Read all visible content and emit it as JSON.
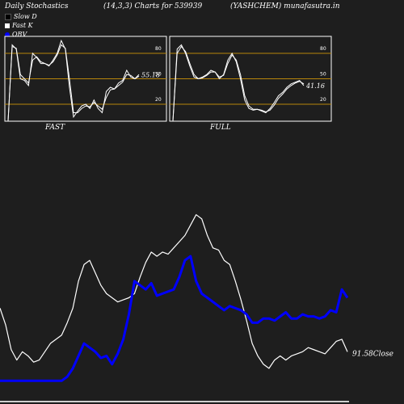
{
  "header": {
    "left": "Daily Stochastics",
    "center": "(14,3,3) Charts for 539939",
    "right": "(YASHCHEM) munafasutra.in"
  },
  "legend": [
    {
      "label": "Slow  D",
      "color": "#000000"
    },
    {
      "label": "Fast K",
      "color": "#ffffff"
    },
    {
      "label": "OBV",
      "color": "#0000ff"
    }
  ],
  "chart_data": [
    {
      "type": "line",
      "name_label": "FAST",
      "ylim": [
        0,
        100
      ],
      "yticks": [
        20,
        50,
        80
      ],
      "hlines": [
        20,
        50,
        80
      ],
      "value_label": "55.18",
      "series": [
        {
          "color": "#ffffff",
          "values": [
            0,
            90,
            85,
            50,
            48,
            42,
            80,
            75,
            68,
            68,
            65,
            72,
            80,
            95,
            85,
            40,
            5,
            12,
            18,
            20,
            15,
            25,
            15,
            10,
            35,
            40,
            38,
            45,
            48,
            60,
            52,
            50,
            55
          ]
        },
        {
          "color": "#ffffff",
          "values": [
            0,
            88,
            86,
            55,
            50,
            45,
            72,
            76,
            70,
            68,
            66,
            70,
            78,
            90,
            86,
            50,
            10,
            10,
            15,
            18,
            17,
            22,
            18,
            14,
            28,
            37,
            38,
            42,
            46,
            55,
            54,
            50,
            53
          ]
        }
      ]
    },
    {
      "type": "line",
      "name_label": "FULL",
      "ylim": [
        0,
        100
      ],
      "yticks": [
        20,
        50,
        80
      ],
      "hlines": [
        20,
        50,
        80
      ],
      "value_label": "41.16",
      "series": [
        {
          "color": "#ffffff",
          "values": [
            0,
            85,
            90,
            80,
            65,
            52,
            50,
            52,
            55,
            60,
            58,
            50,
            55,
            72,
            80,
            70,
            50,
            25,
            15,
            13,
            14,
            12,
            10,
            15,
            22,
            30,
            34,
            40,
            44,
            46,
            48,
            42
          ]
        },
        {
          "color": "#ffffff",
          "values": [
            0,
            80,
            88,
            82,
            68,
            55,
            50,
            51,
            54,
            58,
            58,
            52,
            54,
            68,
            78,
            72,
            55,
            30,
            18,
            14,
            14,
            13,
            11,
            13,
            19,
            27,
            32,
            38,
            42,
            45,
            47,
            44
          ]
        }
      ]
    },
    {
      "type": "line",
      "close_label": "91.58Close",
      "series": [
        {
          "name": "Close",
          "color": "#ffffff",
          "values": [
            45,
            37,
            25,
            20,
            24,
            22,
            19,
            20,
            24,
            28,
            30,
            32,
            38,
            45,
            58,
            66,
            68,
            62,
            56,
            52,
            50,
            48,
            49,
            50,
            52,
            60,
            67,
            72,
            70,
            72,
            71,
            74,
            77,
            80,
            85,
            90,
            88,
            80,
            74,
            73,
            68,
            66,
            58,
            49,
            39,
            28,
            22,
            18,
            16,
            20,
            22,
            20,
            22,
            23,
            24,
            26,
            25,
            24,
            23,
            26,
            29,
            30,
            24
          ]
        },
        {
          "name": "OBV",
          "color": "#0000ff",
          "values": [
            10,
            10,
            10,
            10,
            10,
            10,
            10,
            10,
            10,
            10,
            10,
            10,
            12,
            16,
            22,
            28,
            26,
            24,
            21,
            22,
            18,
            23,
            30,
            42,
            58,
            56,
            54,
            57,
            51,
            52,
            53,
            54,
            60,
            68,
            70,
            58,
            52,
            50,
            48,
            46,
            44,
            46,
            45,
            44,
            42,
            38,
            38,
            40,
            40,
            39,
            41,
            43,
            40,
            40,
            42,
            41,
            41,
            40,
            41,
            44,
            43,
            54,
            50
          ]
        }
      ]
    }
  ]
}
